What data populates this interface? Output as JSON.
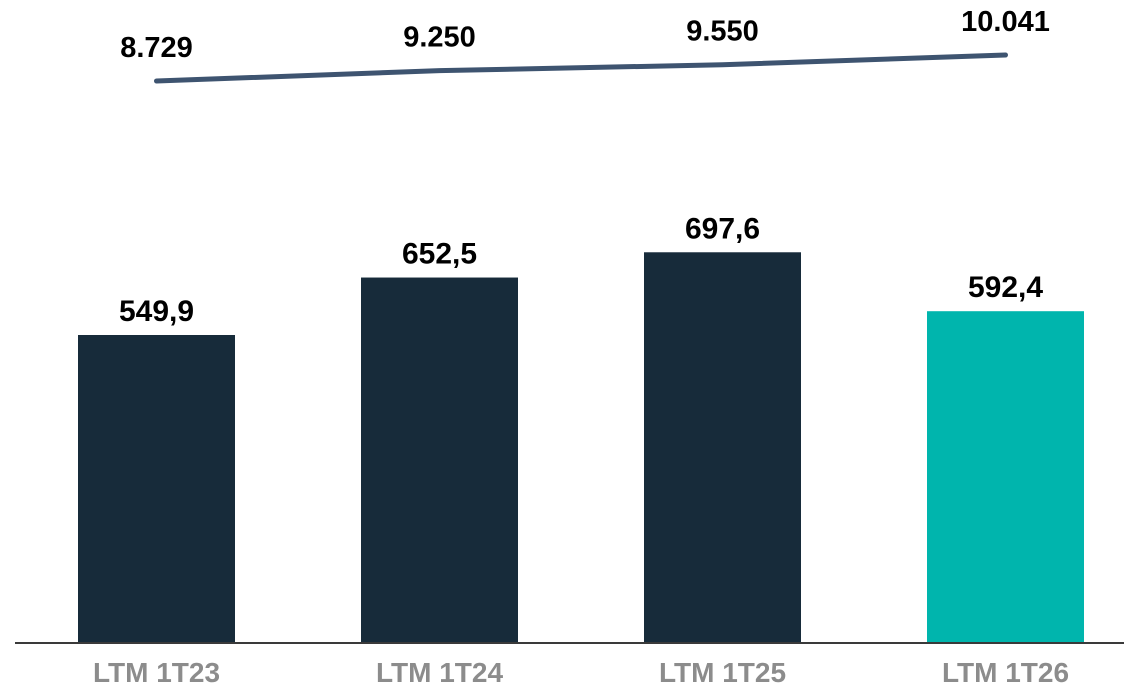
{
  "chart_data": {
    "type": "bar",
    "categories": [
      "LTM 1T23",
      "LTM 1T24",
      "LTM 1T25",
      "LTM 1T26"
    ],
    "series": [
      {
        "type": "bar",
        "values": [
          549.9,
          652.5,
          697.6,
          592.4
        ],
        "labels": [
          "549,9",
          "652,5",
          "697,6",
          "592,4"
        ],
        "colors": [
          "#172b3a",
          "#172b3a",
          "#172b3a",
          "#00b5ad"
        ]
      },
      {
        "type": "line",
        "values": [
          8729,
          9250,
          9550,
          10041
        ],
        "labels": [
          "8.729",
          "9.250",
          "9.550",
          "10.041"
        ],
        "color": "#3e5470"
      }
    ],
    "title": "",
    "xlabel": "",
    "ylabel": "",
    "grid": false,
    "legend": "none"
  }
}
